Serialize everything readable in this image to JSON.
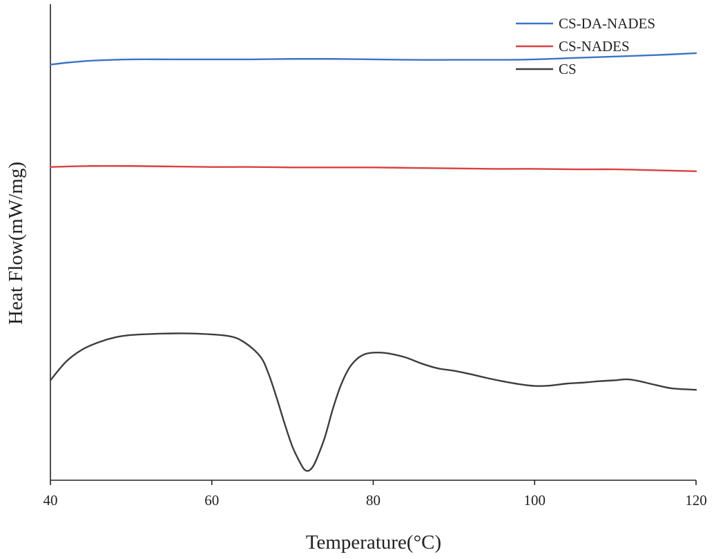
{
  "chart_data": {
    "type": "line",
    "title": "",
    "xlabel": "Temperature(°C)",
    "ylabel": "Heat Flow(mW/mg)",
    "xlim": [
      40,
      120
    ],
    "ylim": [
      0,
      100
    ],
    "xticks": [
      40,
      60,
      80,
      100,
      120
    ],
    "xtick_labels": [
      "40",
      "60",
      "80",
      "100",
      "120"
    ],
    "y_ticks_shown": false,
    "grid": false,
    "legend_position": "top-right",
    "series": [
      {
        "name": "CS-DA-NADES",
        "color": "#3b73c7",
        "x": [
          40,
          42,
          44,
          46,
          50,
          55,
          60,
          65,
          70,
          75,
          80,
          85,
          90,
          95,
          100,
          105,
          110,
          115,
          120
        ],
        "y": [
          87.3,
          87.7,
          88.0,
          88.2,
          88.4,
          88.4,
          88.4,
          88.4,
          88.5,
          88.5,
          88.4,
          88.3,
          88.3,
          88.3,
          88.4,
          88.7,
          89.0,
          89.3,
          89.7
        ]
      },
      {
        "name": "CS-NADES",
        "color": "#d94040",
        "x": [
          40,
          45,
          50,
          55,
          60,
          65,
          70,
          75,
          80,
          85,
          90,
          95,
          100,
          105,
          110,
          115,
          120
        ],
        "y": [
          65.8,
          66.0,
          66.0,
          65.9,
          65.8,
          65.8,
          65.7,
          65.7,
          65.7,
          65.6,
          65.5,
          65.4,
          65.4,
          65.3,
          65.3,
          65.1,
          64.9
        ]
      },
      {
        "name": "CS",
        "color": "#3d3d3d",
        "x": [
          40,
          42,
          44,
          46,
          48,
          50,
          54,
          58,
          62,
          64,
          66,
          67,
          68,
          69,
          70,
          71,
          71.5,
          72,
          72.5,
          73,
          74,
          75,
          76,
          77,
          78,
          79,
          80,
          81,
          82,
          84,
          86,
          88,
          90,
          92,
          94,
          96,
          98,
          100,
          102,
          104,
          106,
          108,
          110,
          111.5,
          113,
          115,
          117,
          120
        ],
        "y": [
          21.0,
          25.0,
          27.5,
          29.0,
          30.0,
          30.5,
          30.8,
          30.8,
          30.3,
          29.0,
          26.0,
          22.5,
          17.5,
          12.0,
          7.0,
          3.5,
          2.2,
          2.0,
          2.8,
          4.5,
          9.0,
          15.0,
          20.0,
          23.5,
          25.5,
          26.5,
          26.8,
          26.8,
          26.6,
          25.8,
          24.5,
          23.5,
          23.0,
          22.3,
          21.5,
          20.8,
          20.2,
          19.8,
          19.9,
          20.3,
          20.5,
          20.8,
          21.0,
          21.2,
          20.8,
          20.0,
          19.3,
          19.0
        ]
      }
    ]
  }
}
